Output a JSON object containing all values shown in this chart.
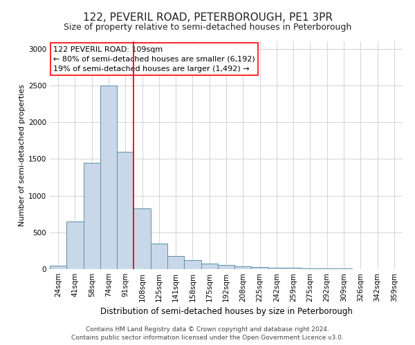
{
  "title": "122, PEVERIL ROAD, PETERBOROUGH, PE1 3PR",
  "subtitle": "Size of property relative to semi-detached houses in Peterborough",
  "xlabel": "Distribution of semi-detached houses by size in Peterborough",
  "ylabel": "Number of semi-detached properties",
  "categories": [
    "24sqm",
    "41sqm",
    "58sqm",
    "74sqm",
    "91sqm",
    "108sqm",
    "125sqm",
    "141sqm",
    "158sqm",
    "175sqm",
    "192sqm",
    "208sqm",
    "225sqm",
    "242sqm",
    "259sqm",
    "275sqm",
    "292sqm",
    "309sqm",
    "326sqm",
    "342sqm",
    "359sqm"
  ],
  "values": [
    50,
    650,
    1450,
    2500,
    1600,
    830,
    350,
    175,
    120,
    75,
    55,
    35,
    25,
    20,
    15,
    10,
    8,
    5,
    3,
    2,
    2
  ],
  "bar_color": "#c8d8e8",
  "bar_edge_color": "#5b8fa8",
  "red_line_x": 4.5,
  "annotation_title": "122 PEVERIL ROAD: 109sqm",
  "annotation_line1": "← 80% of semi-detached houses are smaller (6,192)",
  "annotation_line2": "19% of semi-detached houses are larger (1,492) →",
  "ylim": [
    0,
    3100
  ],
  "yticks": [
    0,
    500,
    1000,
    1500,
    2000,
    2500,
    3000
  ],
  "footer1": "Contains HM Land Registry data © Crown copyright and database right 2024.",
  "footer2": "Contains public sector information licensed under the Open Government Licence v3.0.",
  "background_color": "#ffffff",
  "grid_color": "#cccccc",
  "title_fontsize": 11,
  "subtitle_fontsize": 9,
  "xlabel_fontsize": 8.5,
  "ylabel_fontsize": 8,
  "tick_fontsize": 7.5,
  "footer_fontsize": 6.5,
  "annotation_fontsize": 8
}
